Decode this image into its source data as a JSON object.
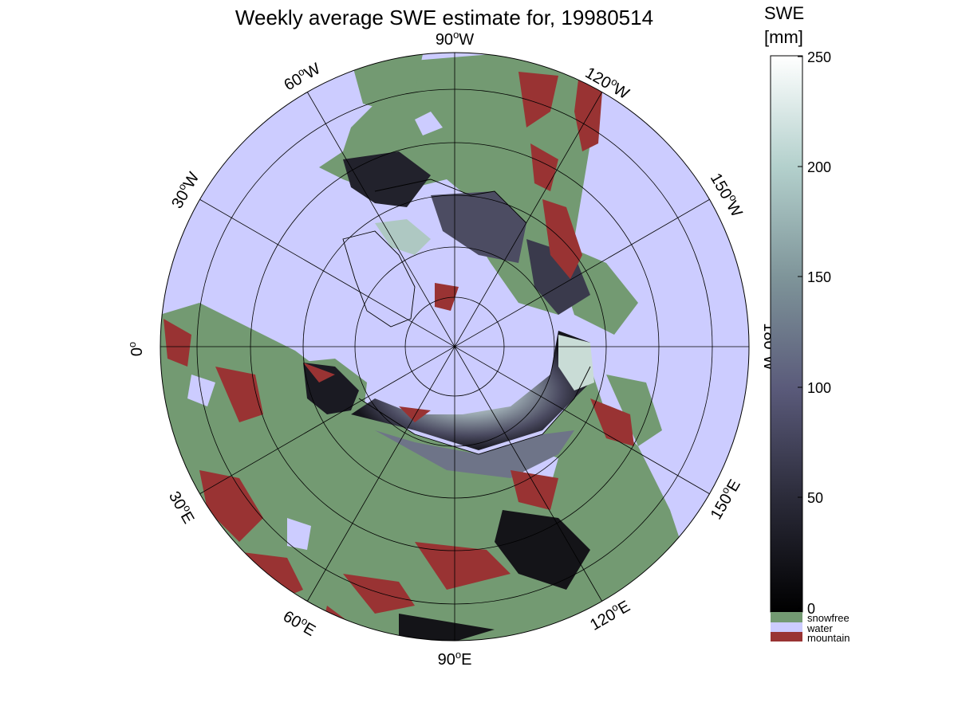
{
  "title": "Weekly average SWE estimate for, 19980514",
  "colors": {
    "snowfree": "#739a72",
    "water": "#ccccff",
    "mountain": "#993333",
    "coastline": "#000000",
    "background": "#ffffff"
  },
  "map": {
    "projection": "north polar stereographic",
    "longitude_labels": [
      {
        "deg": "90",
        "dir": "W"
      },
      {
        "deg": "120",
        "dir": "W"
      },
      {
        "deg": "150",
        "dir": "W"
      },
      {
        "deg": "180",
        "dir": "W"
      },
      {
        "deg": "150",
        "dir": "E"
      },
      {
        "deg": "120",
        "dir": "E"
      },
      {
        "deg": "90",
        "dir": "E"
      },
      {
        "deg": "60",
        "dir": "E"
      },
      {
        "deg": "30",
        "dir": "E"
      },
      {
        "deg": "0",
        "dir": ""
      },
      {
        "deg": "30",
        "dir": "W"
      },
      {
        "deg": "60",
        "dir": "W"
      }
    ]
  },
  "colorbar": {
    "title_line1": "SWE",
    "title_line2": "[mm]",
    "ticks": [
      "0",
      "50",
      "100",
      "150",
      "200",
      "250"
    ],
    "range": [
      0,
      250
    ]
  },
  "legend": [
    {
      "label": "snowfree",
      "color": "#739a72"
    },
    {
      "label": "water",
      "color": "#ccccff"
    },
    {
      "label": "mountain",
      "color": "#993333"
    }
  ]
}
